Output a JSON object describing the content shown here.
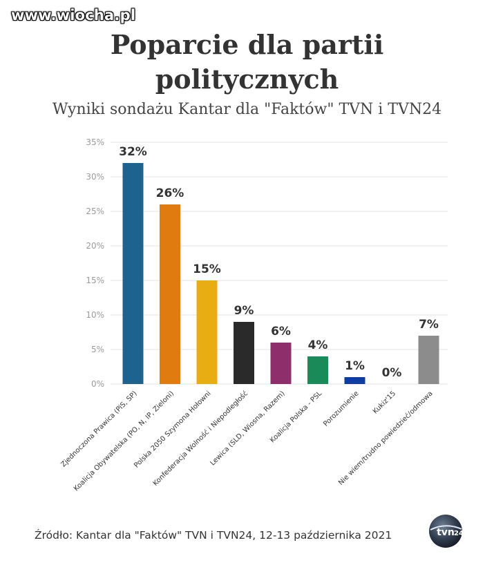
{
  "watermark": "www.wiocha.pl",
  "source": "Źródło: Kantar dla \"Faktów\" TVN i TVN24, 12-13 października 2021",
  "logo_text": "tvn24",
  "chart_data": {
    "type": "bar",
    "title": "Poparcie dla partii politycznych",
    "subtitle": "Wyniki sondażu Kantar dla \"Faktów\" TVN i TVN24",
    "xlabel": "",
    "ylabel": "",
    "ylim": [
      0,
      35
    ],
    "yticks": [
      "0%",
      "5%",
      "10%",
      "15%",
      "20%",
      "25%",
      "30%",
      "35%"
    ],
    "grid": true,
    "categories": [
      "Zjednoczona Prawica (PiS, SP)",
      "Koalicja Obywatelska (PO, N, IP, Zieloni)",
      "Polska 2050 Szymona Hołowni",
      "Konfederacja Wolność i Niepodległość",
      "Lewica (SLD, Wiosna, Razem)",
      "Koalicja Polska - PSL",
      "Porozumienie",
      "Kukiz'15",
      "Nie wiem/trudno powiedzieć/odmowa"
    ],
    "values": [
      32,
      26,
      15,
      9,
      6,
      4,
      1,
      0,
      7
    ],
    "value_labels": [
      "32%",
      "26%",
      "15%",
      "9%",
      "6%",
      "4%",
      "1%",
      "0%",
      "7%"
    ],
    "colors": [
      "#1e6390",
      "#e07b10",
      "#e8ad12",
      "#2a2a2a",
      "#8e2e6a",
      "#1a8a58",
      "#0a3fa0",
      "#ffffff",
      "#8c8c8c"
    ]
  }
}
